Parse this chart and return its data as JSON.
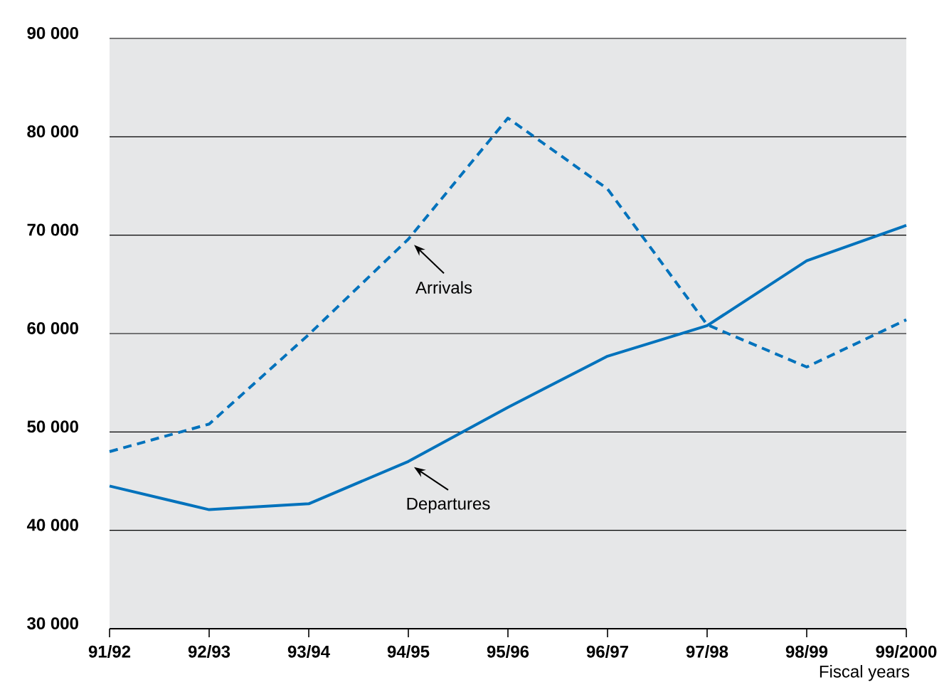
{
  "chart_data": {
    "type": "line",
    "xlabel": "Fiscal years",
    "categories": [
      "91/92",
      "92/93",
      "93/94",
      "94/95",
      "95/96",
      "96/97",
      "97/98",
      "98/99",
      "99/2000"
    ],
    "series": [
      {
        "name": "Departures",
        "color": "#0072bc",
        "line_style": "solid",
        "values": [
          44500,
          42100,
          42700,
          47000,
          52500,
          57700,
          60800,
          67400,
          71000
        ]
      },
      {
        "name": "Arrivals",
        "color": "#0072bc",
        "line_style": "dashed",
        "values": [
          48000,
          50800,
          59900,
          69600,
          81900,
          74700,
          60900,
          56600,
          61400
        ]
      }
    ],
    "ylim": [
      30000,
      90000
    ],
    "yticks": [
      {
        "value": 30000,
        "label": "30 000"
      },
      {
        "value": 40000,
        "label": "40 000"
      },
      {
        "value": 50000,
        "label": "50 000"
      },
      {
        "value": 60000,
        "label": "60 000"
      },
      {
        "value": 70000,
        "label": "70 000"
      },
      {
        "value": 80000,
        "label": "80 000"
      },
      {
        "value": 90000,
        "label": "90 000"
      }
    ],
    "grid": "y",
    "legend": false,
    "marker": "none"
  }
}
